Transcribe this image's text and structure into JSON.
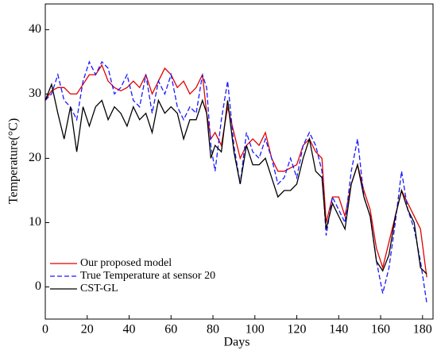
{
  "chart_data": {
    "type": "line",
    "x_label": "Days",
    "y_label": "Temperature(°C)",
    "x": [
      0,
      3,
      6,
      9,
      12,
      15,
      18,
      21,
      24,
      27,
      30,
      33,
      36,
      39,
      42,
      45,
      48,
      51,
      54,
      57,
      60,
      63,
      66,
      69,
      72,
      75,
      77,
      79,
      81,
      84,
      87,
      90,
      93,
      96,
      99,
      102,
      105,
      108,
      111,
      114,
      117,
      120,
      123,
      126,
      129,
      132,
      134,
      137,
      140,
      143,
      146,
      149,
      152,
      155,
      158,
      161,
      164,
      167,
      170,
      173,
      176,
      179,
      182
    ],
    "series": [
      {
        "name": "Our proposed model",
        "color": "#e00000",
        "dash": "solid",
        "values": [
          29,
          30.5,
          31,
          31,
          30,
          30,
          31.5,
          33,
          33,
          34.5,
          32,
          31,
          30.5,
          31,
          32,
          31,
          33,
          30,
          32,
          34,
          33,
          31,
          32,
          30,
          31,
          33,
          27,
          23,
          24,
          22,
          28,
          24,
          20,
          22,
          23,
          22,
          24,
          20,
          18,
          18,
          18.5,
          19,
          22,
          23,
          21,
          20,
          10,
          14,
          14,
          11,
          16,
          19,
          15,
          12,
          6,
          3,
          7,
          11,
          15,
          13,
          11,
          9,
          1.5
        ]
      },
      {
        "name": "True Temperature at sensor 20",
        "color": "#1a1aff",
        "dash": "dashed",
        "values": [
          29,
          30,
          33,
          29,
          28,
          26,
          32,
          35,
          33,
          35,
          34,
          30,
          31,
          33,
          29,
          28,
          33,
          27,
          32,
          30,
          33,
          28,
          26,
          28,
          27,
          33,
          31,
          22,
          18,
          26,
          32,
          22,
          16,
          24,
          21,
          20,
          23,
          20,
          16,
          17,
          20,
          17,
          22,
          24,
          22,
          18,
          8,
          14,
          12,
          10,
          18,
          23,
          14,
          11,
          4,
          -1,
          3,
          10,
          18,
          12,
          9,
          4,
          -2.5
        ]
      },
      {
        "name": "CST-GL",
        "color": "#000000",
        "dash": "solid",
        "values": [
          29,
          31.5,
          27,
          23,
          28,
          21,
          28,
          25,
          28,
          29,
          26,
          28,
          27,
          25,
          28,
          26,
          27,
          24,
          29,
          27,
          28,
          27,
          23,
          26,
          26,
          29,
          27,
          20,
          22,
          21,
          29,
          21,
          16,
          22,
          19,
          19,
          20,
          17,
          14,
          15,
          15,
          16,
          20,
          23,
          18,
          17,
          9,
          13,
          11,
          9,
          16,
          19,
          14,
          11,
          4,
          2.5,
          5,
          11,
          15,
          12,
          10,
          3,
          2
        ]
      }
    ],
    "xlim": [
      0,
      185
    ],
    "ylim": [
      -5,
      44
    ],
    "xticks": [
      0,
      20,
      40,
      60,
      80,
      100,
      120,
      140,
      160,
      180
    ],
    "yticks": [
      0,
      10,
      20,
      30,
      40
    ],
    "legend": "lower left"
  }
}
